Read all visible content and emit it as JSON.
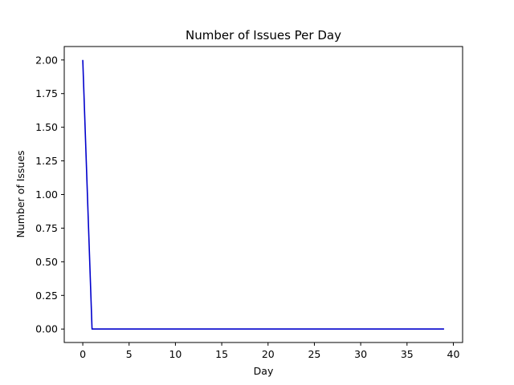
{
  "chart_data": {
    "type": "line",
    "title": "Number of Issues Per Day",
    "xlabel": "Day",
    "ylabel": "Number of Issues",
    "xlim": [
      -2,
      41
    ],
    "ylim": [
      -0.1,
      2.1
    ],
    "xticks": [
      0,
      5,
      10,
      15,
      20,
      25,
      30,
      35,
      40
    ],
    "yticks": [
      0.0,
      0.25,
      0.5,
      0.75,
      1.0,
      1.25,
      1.5,
      1.75,
      2.0
    ],
    "xtick_labels": [
      "0",
      "5",
      "10",
      "15",
      "20",
      "25",
      "30",
      "35",
      "40"
    ],
    "ytick_labels": [
      "0.00",
      "0.25",
      "0.50",
      "0.75",
      "1.00",
      "1.25",
      "1.50",
      "1.75",
      "2.00"
    ],
    "grid": false,
    "series": [
      {
        "color": "#0000cc",
        "x": [
          0,
          1,
          2,
          3,
          4,
          5,
          6,
          7,
          8,
          9,
          10,
          11,
          12,
          13,
          14,
          15,
          16,
          17,
          18,
          19,
          20,
          21,
          22,
          23,
          24,
          25,
          26,
          27,
          28,
          29,
          30,
          31,
          32,
          33,
          34,
          35,
          36,
          37,
          38,
          39
        ],
        "y": [
          2,
          0,
          0,
          0,
          0,
          0,
          0,
          0,
          0,
          0,
          0,
          0,
          0,
          0,
          0,
          0,
          0,
          0,
          0,
          0,
          0,
          0,
          0,
          0,
          0,
          0,
          0,
          0,
          0,
          0,
          0,
          0,
          0,
          0,
          0,
          0,
          0,
          0,
          0,
          0
        ]
      }
    ]
  }
}
